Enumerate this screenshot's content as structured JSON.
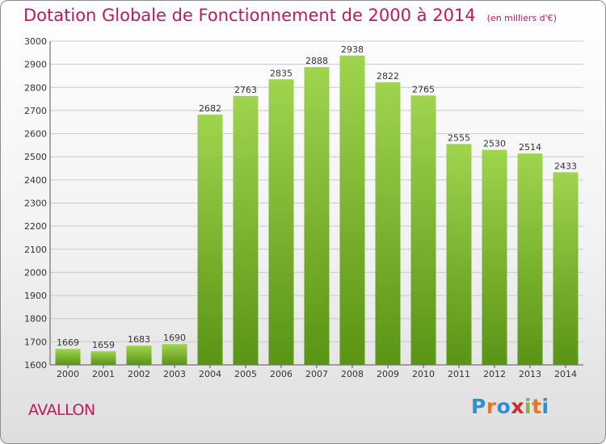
{
  "title": {
    "main": "Dotation Globale de Fonctionnement de 2000 à 2014",
    "unit": "(en milliers d'€)"
  },
  "commune": "AVALLON",
  "logo": {
    "text": "Proxiti",
    "colors": [
      "#2f8fd0",
      "#e87722",
      "#2f8fd0",
      "#d62828",
      "#7cb83e",
      "#e87722",
      "#2f8fd0"
    ]
  },
  "colors": {
    "title": "#c2185b",
    "bar_top": "#9fd44e",
    "bar_bottom": "#5a9414",
    "gridline": "#c8c8c8"
  },
  "chart_data": {
    "type": "bar",
    "categories": [
      "2000",
      "2001",
      "2002",
      "2003",
      "2004",
      "2005",
      "2006",
      "2007",
      "2008",
      "2009",
      "2010",
      "2011",
      "2012",
      "2013",
      "2014"
    ],
    "values": [
      1669,
      1659,
      1683,
      1690,
      2682,
      2763,
      2835,
      2888,
      2938,
      2822,
      2765,
      2555,
      2530,
      2514,
      2433
    ],
    "ylim": [
      1600,
      3000
    ],
    "yticks": [
      1600,
      1700,
      1800,
      1900,
      2000,
      2100,
      2200,
      2300,
      2400,
      2500,
      2600,
      2700,
      2800,
      2900,
      3000
    ],
    "grid": true,
    "data_labels": true
  }
}
